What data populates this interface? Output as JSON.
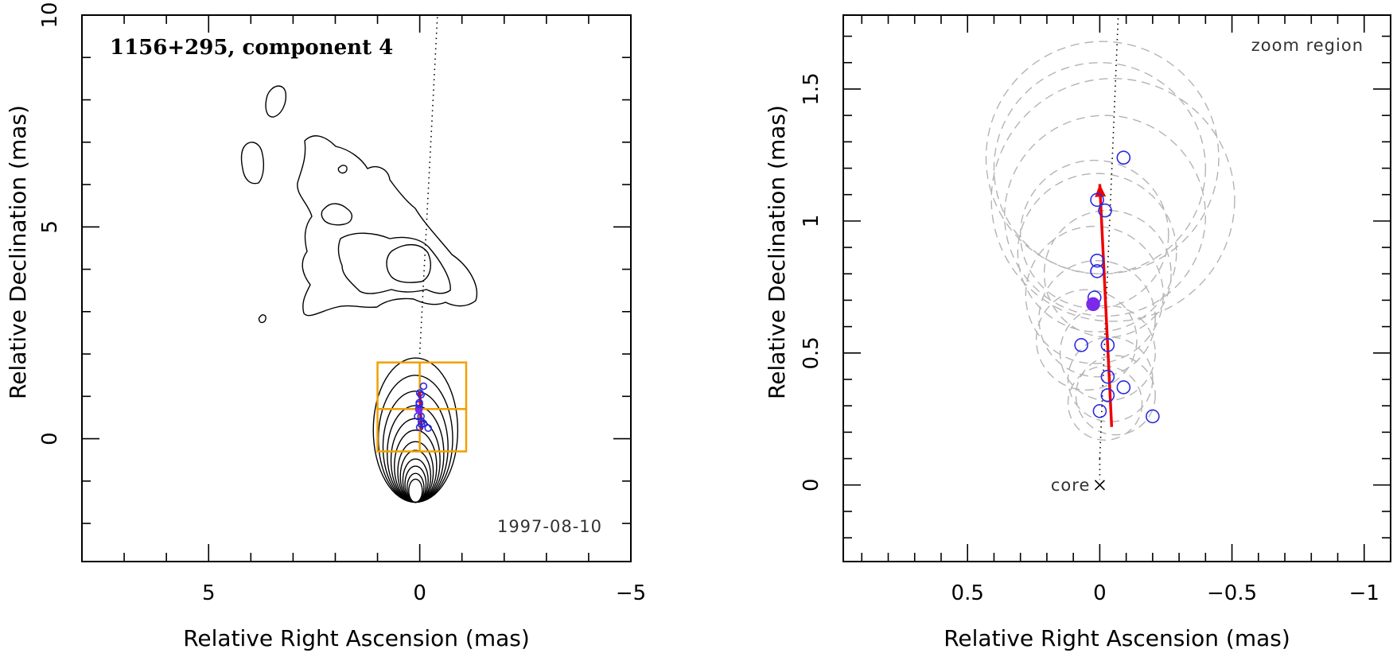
{
  "chart_data": [
    {
      "type": "scatter",
      "panel": "left",
      "title": "1156+295, component 4",
      "epoch": "1997-08-10",
      "xlabel": "Relative Right Ascension (mas)",
      "ylabel": "Relative Declination (mas)",
      "xlim": [
        8.0,
        -5.0
      ],
      "ylim": [
        -2.9,
        10.0
      ],
      "xticks": [
        {
          "v": 5,
          "label": "5"
        },
        {
          "v": 0,
          "label": "0"
        },
        {
          "v": -5,
          "label": "−5"
        }
      ],
      "yticks": [
        {
          "v": 0,
          "label": "0"
        },
        {
          "v": 5,
          "label": "5"
        },
        {
          "v": 10,
          "label": "10"
        }
      ],
      "x_minor_step": 1,
      "y_minor_step": 1,
      "ridge_line": [
        [
          0.0,
          2.0
        ],
        [
          -0.42,
          10.0
        ]
      ],
      "zoom_box": {
        "x": [
          1.0,
          -1.1
        ],
        "y": [
          -0.3,
          1.8
        ]
      },
      "zoom_cross": {
        "x": 0.0,
        "y": 0.7
      },
      "components": [
        {
          "x": 0.0,
          "y": 0.27,
          "filled": false
        },
        {
          "x": -0.04,
          "y": 0.34,
          "filled": false
        },
        {
          "x": -0.09,
          "y": 0.36,
          "filled": false
        },
        {
          "x": -0.04,
          "y": 0.41,
          "filled": false
        },
        {
          "x": -0.2,
          "y": 0.25,
          "filled": false
        },
        {
          "x": 0.05,
          "y": 0.53,
          "filled": false
        },
        {
          "x": -0.03,
          "y": 0.53,
          "filled": false
        },
        {
          "x": 0.02,
          "y": 0.71,
          "filled": false
        },
        {
          "x": 0.02,
          "y": 0.68,
          "filled": true
        },
        {
          "x": 0.01,
          "y": 0.81,
          "filled": false
        },
        {
          "x": 0.01,
          "y": 0.85,
          "filled": false
        },
        {
          "x": -0.03,
          "y": 1.04,
          "filled": false
        },
        {
          "x": 0.0,
          "y": 1.08,
          "filled": false
        },
        {
          "x": -0.09,
          "y": 1.24,
          "filled": false
        }
      ],
      "motion_vector": {
        "from": [
          -0.04,
          0.22
        ],
        "to": [
          0.0,
          1.12
        ]
      },
      "core_contours": {
        "center": [
          0.1,
          0.3
        ],
        "ry_scale": 1.72,
        "rx_values": [
          0.16,
          0.2,
          0.25,
          0.3,
          0.36,
          0.42,
          0.5,
          0.58,
          0.67,
          0.77,
          0.88,
          1.0
        ]
      }
    },
    {
      "type": "scatter",
      "panel": "right",
      "annotation": "zoom region",
      "core_label": "core",
      "xlabel": "Relative Right Ascension (mas)",
      "ylabel": "Relative Declination (mas)",
      "xlim": [
        0.97,
        -1.1
      ],
      "ylim": [
        -0.29,
        1.78
      ],
      "xticks": [
        {
          "v": 0.5,
          "label": "0.5"
        },
        {
          "v": 0,
          "label": "0"
        },
        {
          "v": -0.5,
          "label": "−0.5"
        },
        {
          "v": -1,
          "label": "−1"
        }
      ],
      "yticks": [
        {
          "v": 0,
          "label": "0"
        },
        {
          "v": 0.5,
          "label": "0.5"
        },
        {
          "v": 1,
          "label": "1"
        },
        {
          "v": 1.5,
          "label": "1.5"
        }
      ],
      "x_minor_step": 0.1,
      "y_minor_step": 0.1,
      "ridge_line": [
        [
          0.0,
          0.1
        ],
        [
          -0.07,
          1.78
        ]
      ],
      "core": {
        "x": 0.0,
        "y": 0.0
      },
      "components": [
        {
          "x": 0.0,
          "y": 0.28,
          "filled": false
        },
        {
          "x": -0.03,
          "y": 0.34,
          "filled": false
        },
        {
          "x": -0.09,
          "y": 0.37,
          "filled": false
        },
        {
          "x": -0.03,
          "y": 0.41,
          "filled": false
        },
        {
          "x": -0.2,
          "y": 0.26,
          "filled": false
        },
        {
          "x": 0.07,
          "y": 0.53,
          "filled": false
        },
        {
          "x": -0.03,
          "y": 0.53,
          "filled": false
        },
        {
          "x": 0.02,
          "y": 0.71,
          "filled": false
        },
        {
          "x": 0.025,
          "y": 0.685,
          "filled": true
        },
        {
          "x": 0.01,
          "y": 0.81,
          "filled": false
        },
        {
          "x": 0.01,
          "y": 0.85,
          "filled": false
        },
        {
          "x": -0.02,
          "y": 1.04,
          "filled": false
        },
        {
          "x": 0.01,
          "y": 1.08,
          "filled": false
        },
        {
          "x": -0.09,
          "y": 1.24,
          "filled": false
        }
      ],
      "motion_vector": {
        "from": [
          -0.045,
          0.22
        ],
        "to": [
          0.0,
          1.14
        ]
      },
      "beam_circles": [
        {
          "x": -0.01,
          "y": 1.24,
          "r": 0.44
        },
        {
          "x": 0.0,
          "y": 1.2,
          "r": 0.4
        },
        {
          "x": -0.05,
          "y": 1.08,
          "r": 0.46
        },
        {
          "x": -0.02,
          "y": 1.02,
          "r": 0.38
        },
        {
          "x": 0.02,
          "y": 0.95,
          "r": 0.28
        },
        {
          "x": 0.01,
          "y": 0.88,
          "r": 0.3
        },
        {
          "x": -0.03,
          "y": 0.8,
          "r": 0.24
        },
        {
          "x": 0.02,
          "y": 0.72,
          "r": 0.26
        },
        {
          "x": 0.01,
          "y": 0.63,
          "r": 0.22
        },
        {
          "x": 0.05,
          "y": 0.55,
          "r": 0.19
        },
        {
          "x": -0.03,
          "y": 0.5,
          "r": 0.18
        },
        {
          "x": -0.04,
          "y": 0.4,
          "r": 0.16
        },
        {
          "x": -0.06,
          "y": 0.34,
          "r": 0.15
        },
        {
          "x": -0.02,
          "y": 0.31,
          "r": 0.14
        }
      ]
    }
  ]
}
